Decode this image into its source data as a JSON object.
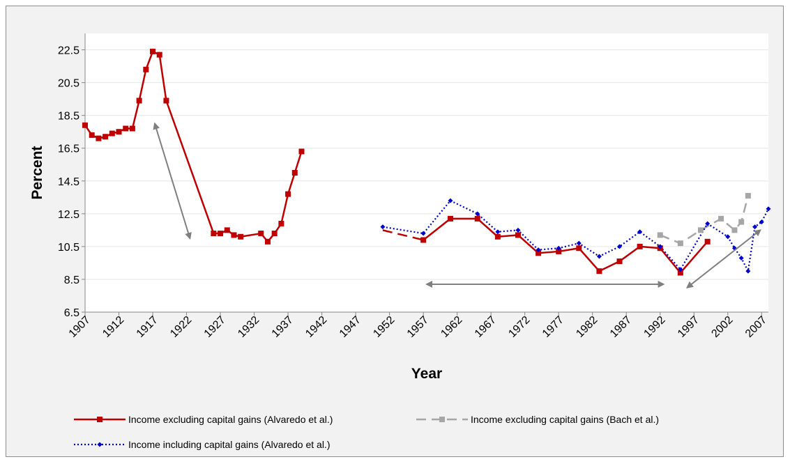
{
  "chart_data": {
    "type": "line",
    "title": "",
    "xlabel": "Year",
    "ylabel": "Percent",
    "xlim": [
      1907,
      2008
    ],
    "ylim": [
      6.5,
      23.5
    ],
    "yticks": [
      6.5,
      8.5,
      10.5,
      12.5,
      14.5,
      16.5,
      18.5,
      20.5,
      22.5
    ],
    "xticks": [
      1907,
      1912,
      1917,
      1922,
      1927,
      1932,
      1937,
      1942,
      1947,
      1952,
      1957,
      1962,
      1967,
      1972,
      1977,
      1982,
      1987,
      1992,
      1997,
      2002,
      2007
    ],
    "grid": "horizontal",
    "legend_position": "bottom",
    "series": [
      {
        "name": "Income excluding capital gains (Alvaredo et al.)",
        "color": "#c00000",
        "style": "solid",
        "marker": "square",
        "segments": [
          [
            [
              1907,
              17.9
            ],
            [
              1908,
              17.3
            ],
            [
              1909,
              17.1
            ],
            [
              1910,
              17.2
            ],
            [
              1911,
              17.4
            ],
            [
              1912,
              17.5
            ],
            [
              1913,
              17.7
            ],
            [
              1914,
              17.7
            ],
            [
              1915,
              19.4
            ],
            [
              1916,
              21.3
            ],
            [
              1917,
              22.4
            ],
            [
              1918,
              22.2
            ],
            [
              1919,
              19.4
            ],
            [
              1926,
              11.3
            ],
            [
              1927,
              11.3
            ],
            [
              1928,
              11.5
            ],
            [
              1929,
              11.2
            ],
            [
              1930,
              11.1
            ],
            [
              1933,
              11.3
            ],
            [
              1934,
              10.8
            ],
            [
              1935,
              11.3
            ],
            [
              1936,
              11.9
            ],
            [
              1937,
              13.7
            ],
            [
              1938,
              15.0
            ],
            [
              1939,
              16.3
            ]
          ],
          [
            [
              1957,
              10.9
            ],
            [
              1961,
              12.2
            ],
            [
              1965,
              12.2
            ],
            [
              1968,
              11.1
            ],
            [
              1971,
              11.2
            ],
            [
              1974,
              10.1
            ],
            [
              1977,
              10.2
            ],
            [
              1980,
              10.4
            ],
            [
              1983,
              9.0
            ],
            [
              1986,
              9.6
            ],
            [
              1989,
              10.5
            ],
            [
              1992,
              10.4
            ],
            [
              1995,
              8.9
            ],
            [
              1999,
              10.8
            ]
          ]
        ]
      },
      {
        "name": "Income excluding capital gains (Bach et al.)",
        "color": "#a6a6a6",
        "style": "dashed",
        "marker": "square",
        "segments": [
          [
            [
              1992,
              11.2
            ],
            [
              1995,
              10.7
            ],
            [
              1998,
              11.5
            ],
            [
              2001,
              12.2
            ],
            [
              2003,
              11.5
            ],
            [
              2004,
              12.0
            ],
            [
              2005,
              13.6
            ]
          ]
        ]
      },
      {
        "name": "Income including capital gains (Alvaredo et al.)",
        "color": "#0000cc",
        "style": "dotted",
        "marker": "diamond",
        "segments": [
          [
            [
              1951,
              11.7
            ],
            [
              1957,
              11.3
            ],
            [
              1961,
              13.3
            ],
            [
              1965,
              12.5
            ],
            [
              1968,
              11.4
            ],
            [
              1971,
              11.5
            ],
            [
              1974,
              10.3
            ],
            [
              1977,
              10.4
            ],
            [
              1980,
              10.7
            ],
            [
              1983,
              9.9
            ],
            [
              1986,
              10.5
            ],
            [
              1989,
              11.4
            ],
            [
              1992,
              10.5
            ],
            [
              1995,
              9.1
            ],
            [
              1999,
              11.9
            ],
            [
              2002,
              11.1
            ],
            [
              2003,
              10.4
            ],
            [
              2004,
              9.8
            ],
            [
              2005,
              9.0
            ],
            [
              2006,
              11.7
            ],
            [
              2007,
              12.0
            ],
            [
              2008,
              12.8
            ]
          ]
        ]
      }
    ],
    "extra_segments": [
      {
        "series_index": 0,
        "style": "dashed",
        "points": [
          [
            1951,
            11.5
          ],
          [
            1957,
            10.9
          ]
        ]
      }
    ],
    "annotations": [
      {
        "type": "double-arrow",
        "color": "#7f7f7f",
        "from": [
          1917.3,
          18.0
        ],
        "to": [
          1922.5,
          11.0
        ]
      },
      {
        "type": "double-arrow",
        "color": "#7f7f7f",
        "from": [
          1957.5,
          8.2
        ],
        "to": [
          1992.5,
          8.2
        ]
      },
      {
        "type": "double-arrow",
        "color": "#7f7f7f",
        "from": [
          1996,
          8.0
        ],
        "to": [
          2006.8,
          11.5
        ]
      }
    ]
  }
}
